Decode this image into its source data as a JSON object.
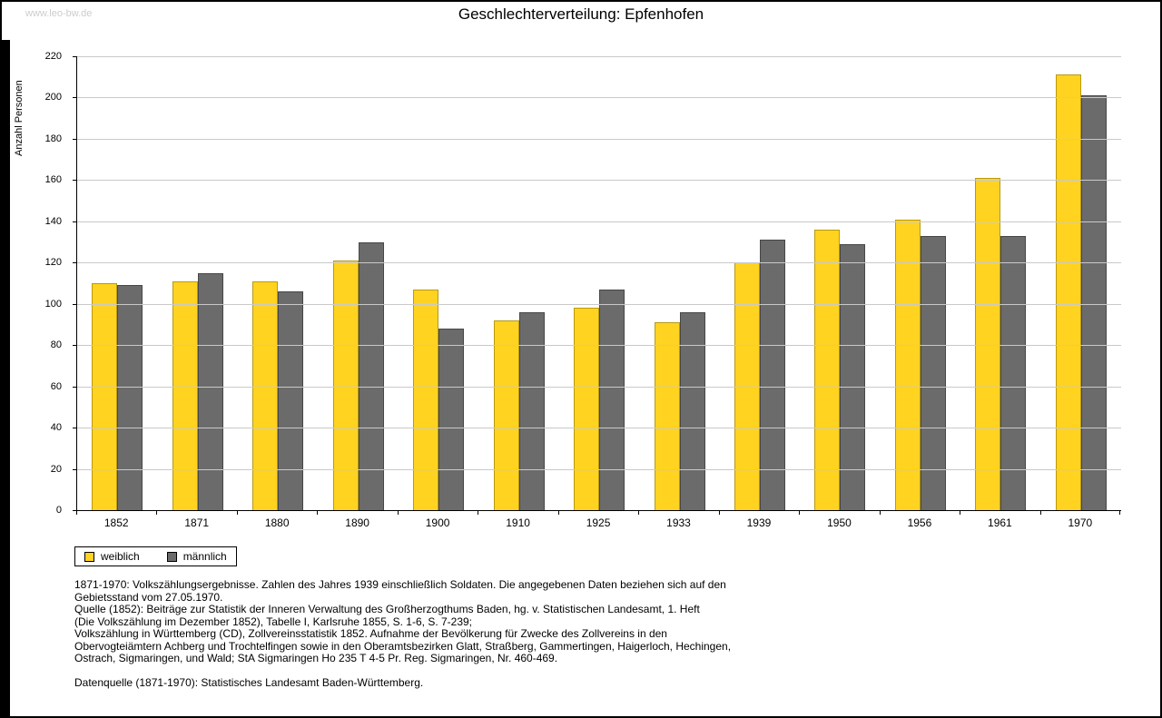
{
  "page": {
    "watermark": "www.leo-bw.de"
  },
  "title": "Geschlechterverteilung: Epfenhofen",
  "chart_data": {
    "type": "bar",
    "title": "Geschlechterverteilung: Epfenhofen",
    "xlabel": "",
    "ylabel": "Anzahl Personen",
    "ylim": [
      0,
      220
    ],
    "ytick_step": 20,
    "grid": true,
    "legend_position": "bottom-left",
    "categories": [
      "1852",
      "1871",
      "1880",
      "1890",
      "1900",
      "1910",
      "1925",
      "1933",
      "1939",
      "1950",
      "1956",
      "1961",
      "1970"
    ],
    "series": [
      {
        "name": "weiblich",
        "color": "#FFD320",
        "border_color": "#b89a10",
        "values": [
          110,
          111,
          111,
          121,
          107,
          92,
          98,
          91,
          120,
          136,
          141,
          161,
          211
        ]
      },
      {
        "name": "männlich",
        "color": "#6b6b6b",
        "border_color": "#474747",
        "values": [
          109,
          115,
          106,
          130,
          88,
          96,
          107,
          96,
          131,
          129,
          133,
          133,
          201
        ]
      }
    ]
  },
  "footnote_lines": [
    "1871-1970: Volkszählungsergebnisse. Zahlen des Jahres 1939 einschließlich Soldaten. Die angegebenen Daten beziehen sich auf den",
    "Gebietsstand vom 27.05.1970.",
    "Quelle (1852): Beiträge zur Statistik der Inneren Verwaltung des Großherzogthums Baden, hg. v. Statistischen Landesamt, 1. Heft",
    "(Die Volkszählung im Dezember 1852), Tabelle I, Karlsruhe 1855, S. 1-6, S. 7-239;",
    "Volkszählung in Württemberg (CD), Zollvereinsstatistik 1852. Aufnahme der Bevölkerung für Zwecke des Zollvereins in den",
    "Obervogteiämtern Achberg und Trochtelfingen sowie in den Oberamtsbezirken Glatt, Straßberg, Gammertingen, Haigerloch, Hechingen,",
    "Ostrach, Sigmaringen, und Wald; StA Sigmaringen Ho 235 T 4-5 Pr. Reg. Sigmaringen, Nr. 460-469.",
    "",
    "Datenquelle (1871-1970): Statistisches Landesamt Baden-Württemberg."
  ]
}
